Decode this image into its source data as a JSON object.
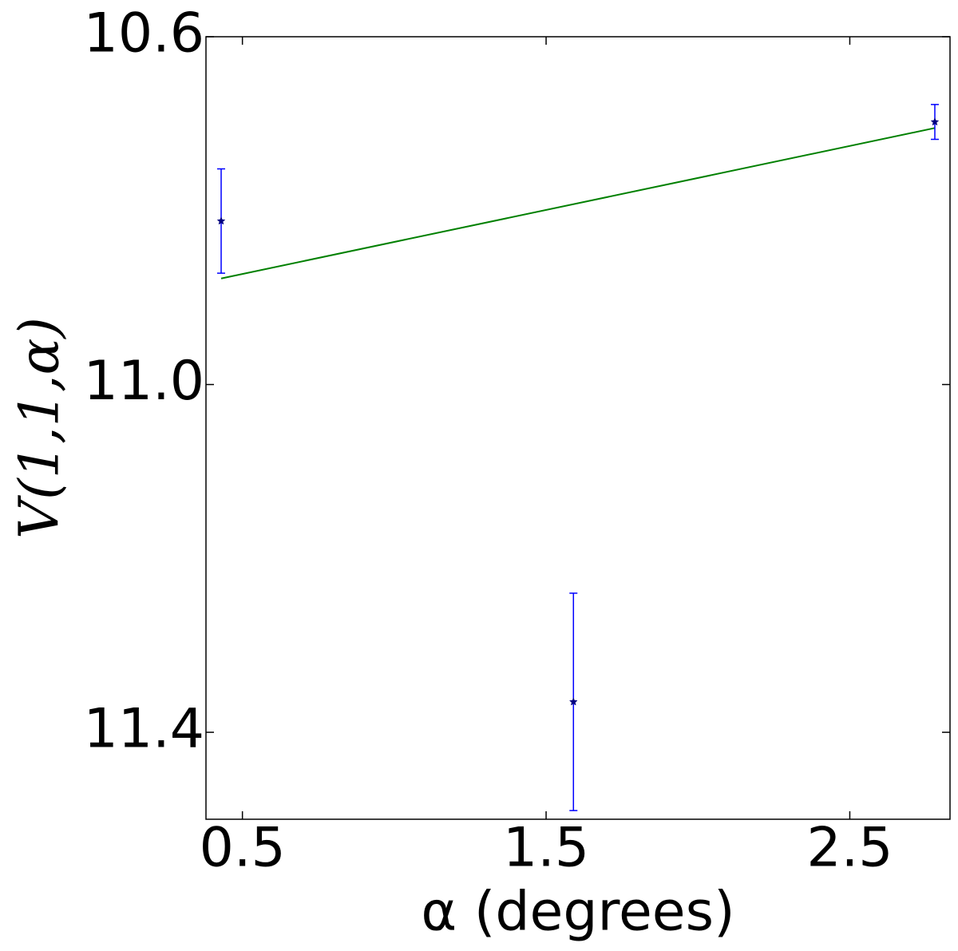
{
  "chart_data": {
    "type": "errorbar",
    "xlabel": "α (degrees)",
    "ylabel": "V(1,1,α)",
    "xlim": [
      0.38,
      2.83
    ],
    "ylim": [
      10.6,
      11.5
    ],
    "y_inverted": true,
    "xticks": [
      0.5,
      1.5,
      2.5
    ],
    "yticks": [
      10.6,
      {
        "value": 11,
        "label": "11.0"
      },
      11.4
    ],
    "points": {
      "x": [
        0.43,
        1.59,
        2.78
      ],
      "values": [
        10.812,
        11.365,
        10.698
      ],
      "errors": [
        0.06,
        0.125,
        0.02
      ],
      "color": "#0000ff",
      "marker_color": "#000080"
    },
    "fit": {
      "x": [
        0.43,
        2.78
      ],
      "values": [
        10.878,
        10.705
      ],
      "color": "#008000"
    }
  }
}
